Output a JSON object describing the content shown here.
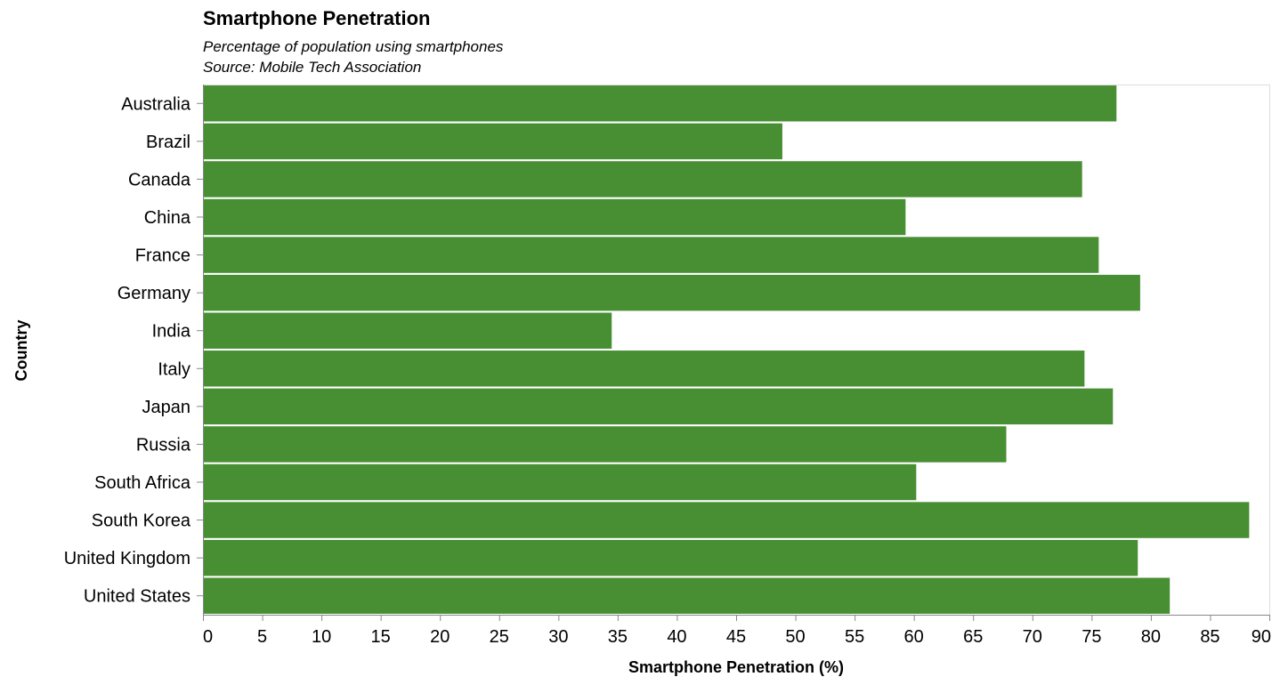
{
  "chart_data": {
    "type": "bar",
    "orientation": "horizontal",
    "title": "Smartphone Penetration",
    "subtitle": [
      "Percentage of population using smartphones",
      "Source: Mobile Tech Association"
    ],
    "xlabel": "Smartphone Penetration (%)",
    "ylabel": "Country",
    "xlim": [
      0,
      90
    ],
    "xticks": [
      0,
      5,
      10,
      15,
      20,
      25,
      30,
      35,
      40,
      45,
      50,
      55,
      60,
      65,
      70,
      75,
      80,
      85,
      90
    ],
    "grid": false,
    "categories": [
      "Australia",
      "Brazil",
      "Canada",
      "China",
      "France",
      "Germany",
      "India",
      "Italy",
      "Japan",
      "Russia",
      "South Africa",
      "South Korea",
      "United Kingdom",
      "United States"
    ],
    "values": [
      77.1,
      48.9,
      74.2,
      59.3,
      75.6,
      79.1,
      34.5,
      74.4,
      76.8,
      67.8,
      60.2,
      88.3,
      78.9,
      81.6
    ],
    "bar_color": "#478f32"
  }
}
